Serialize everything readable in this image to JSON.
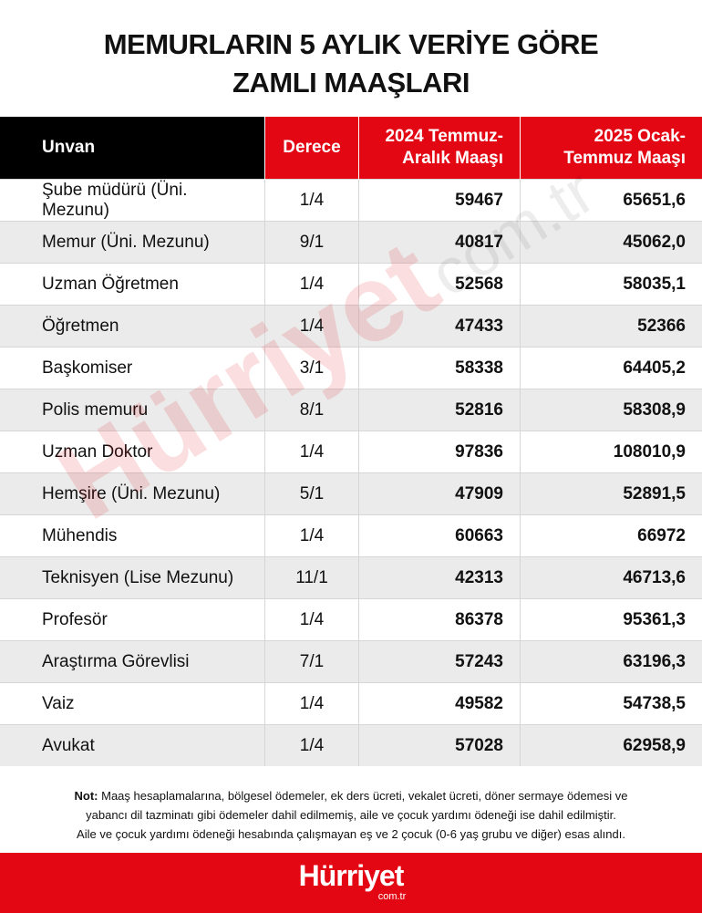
{
  "header": {
    "title_lines": [
      "MEMURLARIN 5 AYLIK VERİYE GÖRE",
      "ZAMLI MAAŞLARI"
    ]
  },
  "table": {
    "columns": [
      "Unvan",
      "Derece",
      "2024 Temmuz-Aralık Maaşı",
      "2025 Ocak-Temmuz Maaşı"
    ],
    "rows": [
      [
        "Şube müdürü (Üni. Mezunu)",
        "1/4",
        "59467",
        "65651,6"
      ],
      [
        "Memur (Üni. Mezunu)",
        "9/1",
        "40817",
        "45062,0"
      ],
      [
        "Uzman Öğretmen",
        "1/4",
        "52568",
        "58035,1"
      ],
      [
        "Öğretmen",
        "1/4",
        "47433",
        "52366"
      ],
      [
        "Başkomiser",
        "3/1",
        "58338",
        "64405,2"
      ],
      [
        "Polis memuru",
        "8/1",
        "52816",
        "58308,9"
      ],
      [
        "Uzman Doktor",
        "1/4",
        "97836",
        "108010,9"
      ],
      [
        "Hemşire (Üni. Mezunu)",
        "5/1",
        "47909",
        "52891,5"
      ],
      [
        "Mühendis",
        "1/4",
        "60663",
        "66972"
      ],
      [
        "Teknisyen (Lise Mezunu)",
        "11/1",
        "42313",
        "46713,6"
      ],
      [
        "Profesör",
        "1/4",
        "86378",
        "95361,3"
      ],
      [
        "Araştırma Görevlisi",
        "7/1",
        "57243",
        "63196,3"
      ],
      [
        "Vaiz",
        "1/4",
        "49582",
        "54738,5"
      ],
      [
        "Avukat",
        "1/4",
        "57028",
        "62958,9"
      ]
    ]
  },
  "note": {
    "label": "Not:",
    "lines": [
      "Maaş hesaplamalarına, bölgesel ödemeler, ek ders ücreti, vekalet ücreti, döner sermaye ödemesi ve",
      "yabancı dil tazminatı gibi ödemeler dahil edilmemiş, aile ve çocuk yardımı ödeneği ise dahil edilmiştir.",
      "Aile ve çocuk yardımı ödeneği hesabında çalışmayan eş ve 2 çocuk (0-6 yaş grubu ve diğer) esas alındı."
    ]
  },
  "watermark": {
    "brand": "Hürriyet",
    "domain": "com.tr"
  },
  "footer": {
    "brand": "Hürriyet",
    "domain": "com.tr"
  }
}
